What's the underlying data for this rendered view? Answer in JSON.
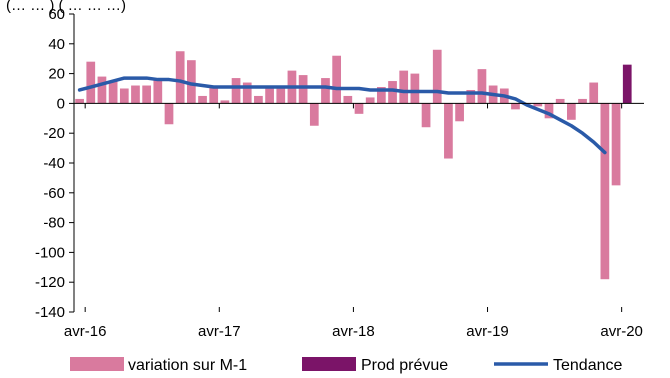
{
  "top_note": "(… … ) ( … … …)",
  "colors": {
    "variation": "#d97a9e",
    "prod": "#7b1468",
    "trend": "#2a5aa8",
    "axis": "#000000"
  },
  "chart_data": {
    "type": "bar",
    "title": "",
    "xlabel": "",
    "ylabel": "",
    "ylim": [
      -140,
      60
    ],
    "yticks": [
      60,
      40,
      20,
      0,
      -20,
      -40,
      -60,
      -80,
      -100,
      -120,
      -140
    ],
    "grid": false,
    "legend_placement": "bottom",
    "x": [
      "2016-03",
      "2016-04",
      "2016-05",
      "2016-06",
      "2016-07",
      "2016-08",
      "2016-09",
      "2016-10",
      "2016-11",
      "2016-12",
      "2017-01",
      "2017-02",
      "2017-03",
      "2017-04",
      "2017-05",
      "2017-06",
      "2017-07",
      "2017-08",
      "2017-09",
      "2017-10",
      "2017-11",
      "2017-12",
      "2018-01",
      "2018-02",
      "2018-03",
      "2018-04",
      "2018-05",
      "2018-06",
      "2018-07",
      "2018-08",
      "2018-09",
      "2018-10",
      "2018-11",
      "2018-12",
      "2019-01",
      "2019-02",
      "2019-03",
      "2019-04",
      "2019-05",
      "2019-06",
      "2019-07",
      "2019-08",
      "2019-09",
      "2019-10",
      "2019-11",
      "2019-12",
      "2020-01",
      "2020-02",
      "2020-03",
      "2020-04",
      "2020-05"
    ],
    "xtick_labels": [
      {
        "label": "avr-16",
        "at": "2016-04"
      },
      {
        "label": "avr-17",
        "at": "2017-04"
      },
      {
        "label": "avr-18",
        "at": "2018-04"
      },
      {
        "label": "avr-19",
        "at": "2019-04"
      },
      {
        "label": "avr-20",
        "at": "2020-04"
      }
    ],
    "series": [
      {
        "name": "variation sur M-1",
        "kind": "bar",
        "values": [
          3,
          28,
          18,
          15,
          10,
          12,
          12,
          16,
          -14,
          35,
          29,
          5,
          12,
          2,
          17,
          14,
          5,
          10,
          10,
          22,
          19,
          -15,
          17,
          32,
          5,
          -7,
          4,
          11,
          15,
          22,
          20,
          -16,
          36,
          -37,
          -12,
          9,
          23,
          12,
          10,
          -4,
          0,
          -2,
          -10,
          3,
          -11,
          3,
          14,
          -118,
          -55,
          null,
          null
        ]
      },
      {
        "name": "Prod prévue",
        "kind": "bar",
        "values": [
          null,
          null,
          null,
          null,
          null,
          null,
          null,
          null,
          null,
          null,
          null,
          null,
          null,
          null,
          null,
          null,
          null,
          null,
          null,
          null,
          null,
          null,
          null,
          null,
          null,
          null,
          null,
          null,
          null,
          null,
          null,
          null,
          null,
          null,
          null,
          null,
          null,
          null,
          null,
          null,
          null,
          null,
          null,
          null,
          null,
          null,
          null,
          null,
          null,
          26,
          null
        ]
      },
      {
        "name": "Tendance",
        "kind": "line",
        "values": [
          9,
          11,
          13,
          15,
          17,
          17,
          17,
          16,
          16,
          15,
          13,
          12,
          11,
          11,
          11,
          11,
          11,
          11,
          11,
          11,
          11,
          11,
          11,
          10,
          10,
          10,
          9,
          9,
          9,
          8,
          8,
          8,
          8,
          7,
          7,
          7,
          7,
          6,
          5,
          3,
          -1,
          -4,
          -7,
          -11,
          -15,
          -20,
          -26,
          -33,
          null,
          null,
          null
        ]
      }
    ]
  }
}
